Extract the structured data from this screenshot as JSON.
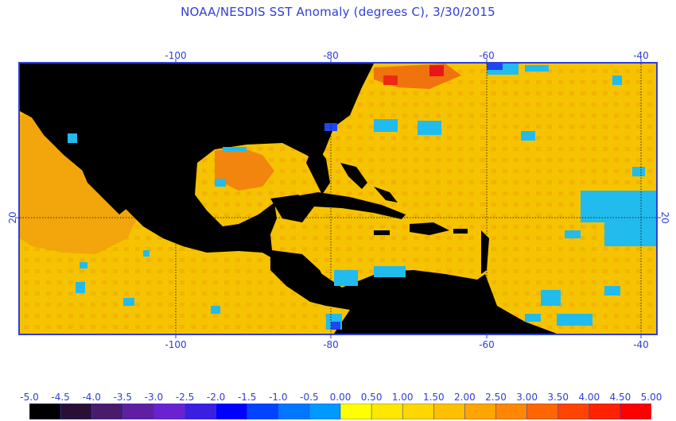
{
  "title": "NOAA/NESDIS SST Anomaly (degrees C), 3/30/2015",
  "map": {
    "lon_ticks_top": [
      "-100",
      "-80",
      "-60",
      "-40"
    ],
    "lon_ticks_bottom": [
      "-100",
      "-80",
      "-60",
      "-40"
    ],
    "lat_tick_left": "20",
    "lat_tick_right": "20",
    "land_color": "#000000",
    "frame_color": "#2f3fd6",
    "ocean_dominant_color": "#f5c300",
    "warm_anomaly_color": "#f08010",
    "cool_anomaly_color": "#22bbee"
  },
  "legend": {
    "labels": [
      "-5.0",
      "-4.5",
      "-4.0",
      "-3.5",
      "-3.0",
      "-2.5",
      "-2.0",
      "-1.5",
      "-1.0",
      "-0.5",
      "0.00",
      "0.50",
      "1.00",
      "1.50",
      "2.00",
      "2.50",
      "3.00",
      "3.50",
      "4.00",
      "4.50",
      "5.00"
    ],
    "colors": [
      "#000000",
      "#2a0f34",
      "#4a1a6b",
      "#5f1fa0",
      "#6a22d0",
      "#3a1fe0",
      "#0000ff",
      "#0044ff",
      "#0077ff",
      "#0099ff",
      "#00ccff",
      "#ffff00",
      "#ffe800",
      "#ffd700",
      "#ffc000",
      "#ffa500",
      "#ff8800",
      "#ff6600",
      "#ff4400",
      "#ff2200",
      "#ff0000"
    ]
  }
}
